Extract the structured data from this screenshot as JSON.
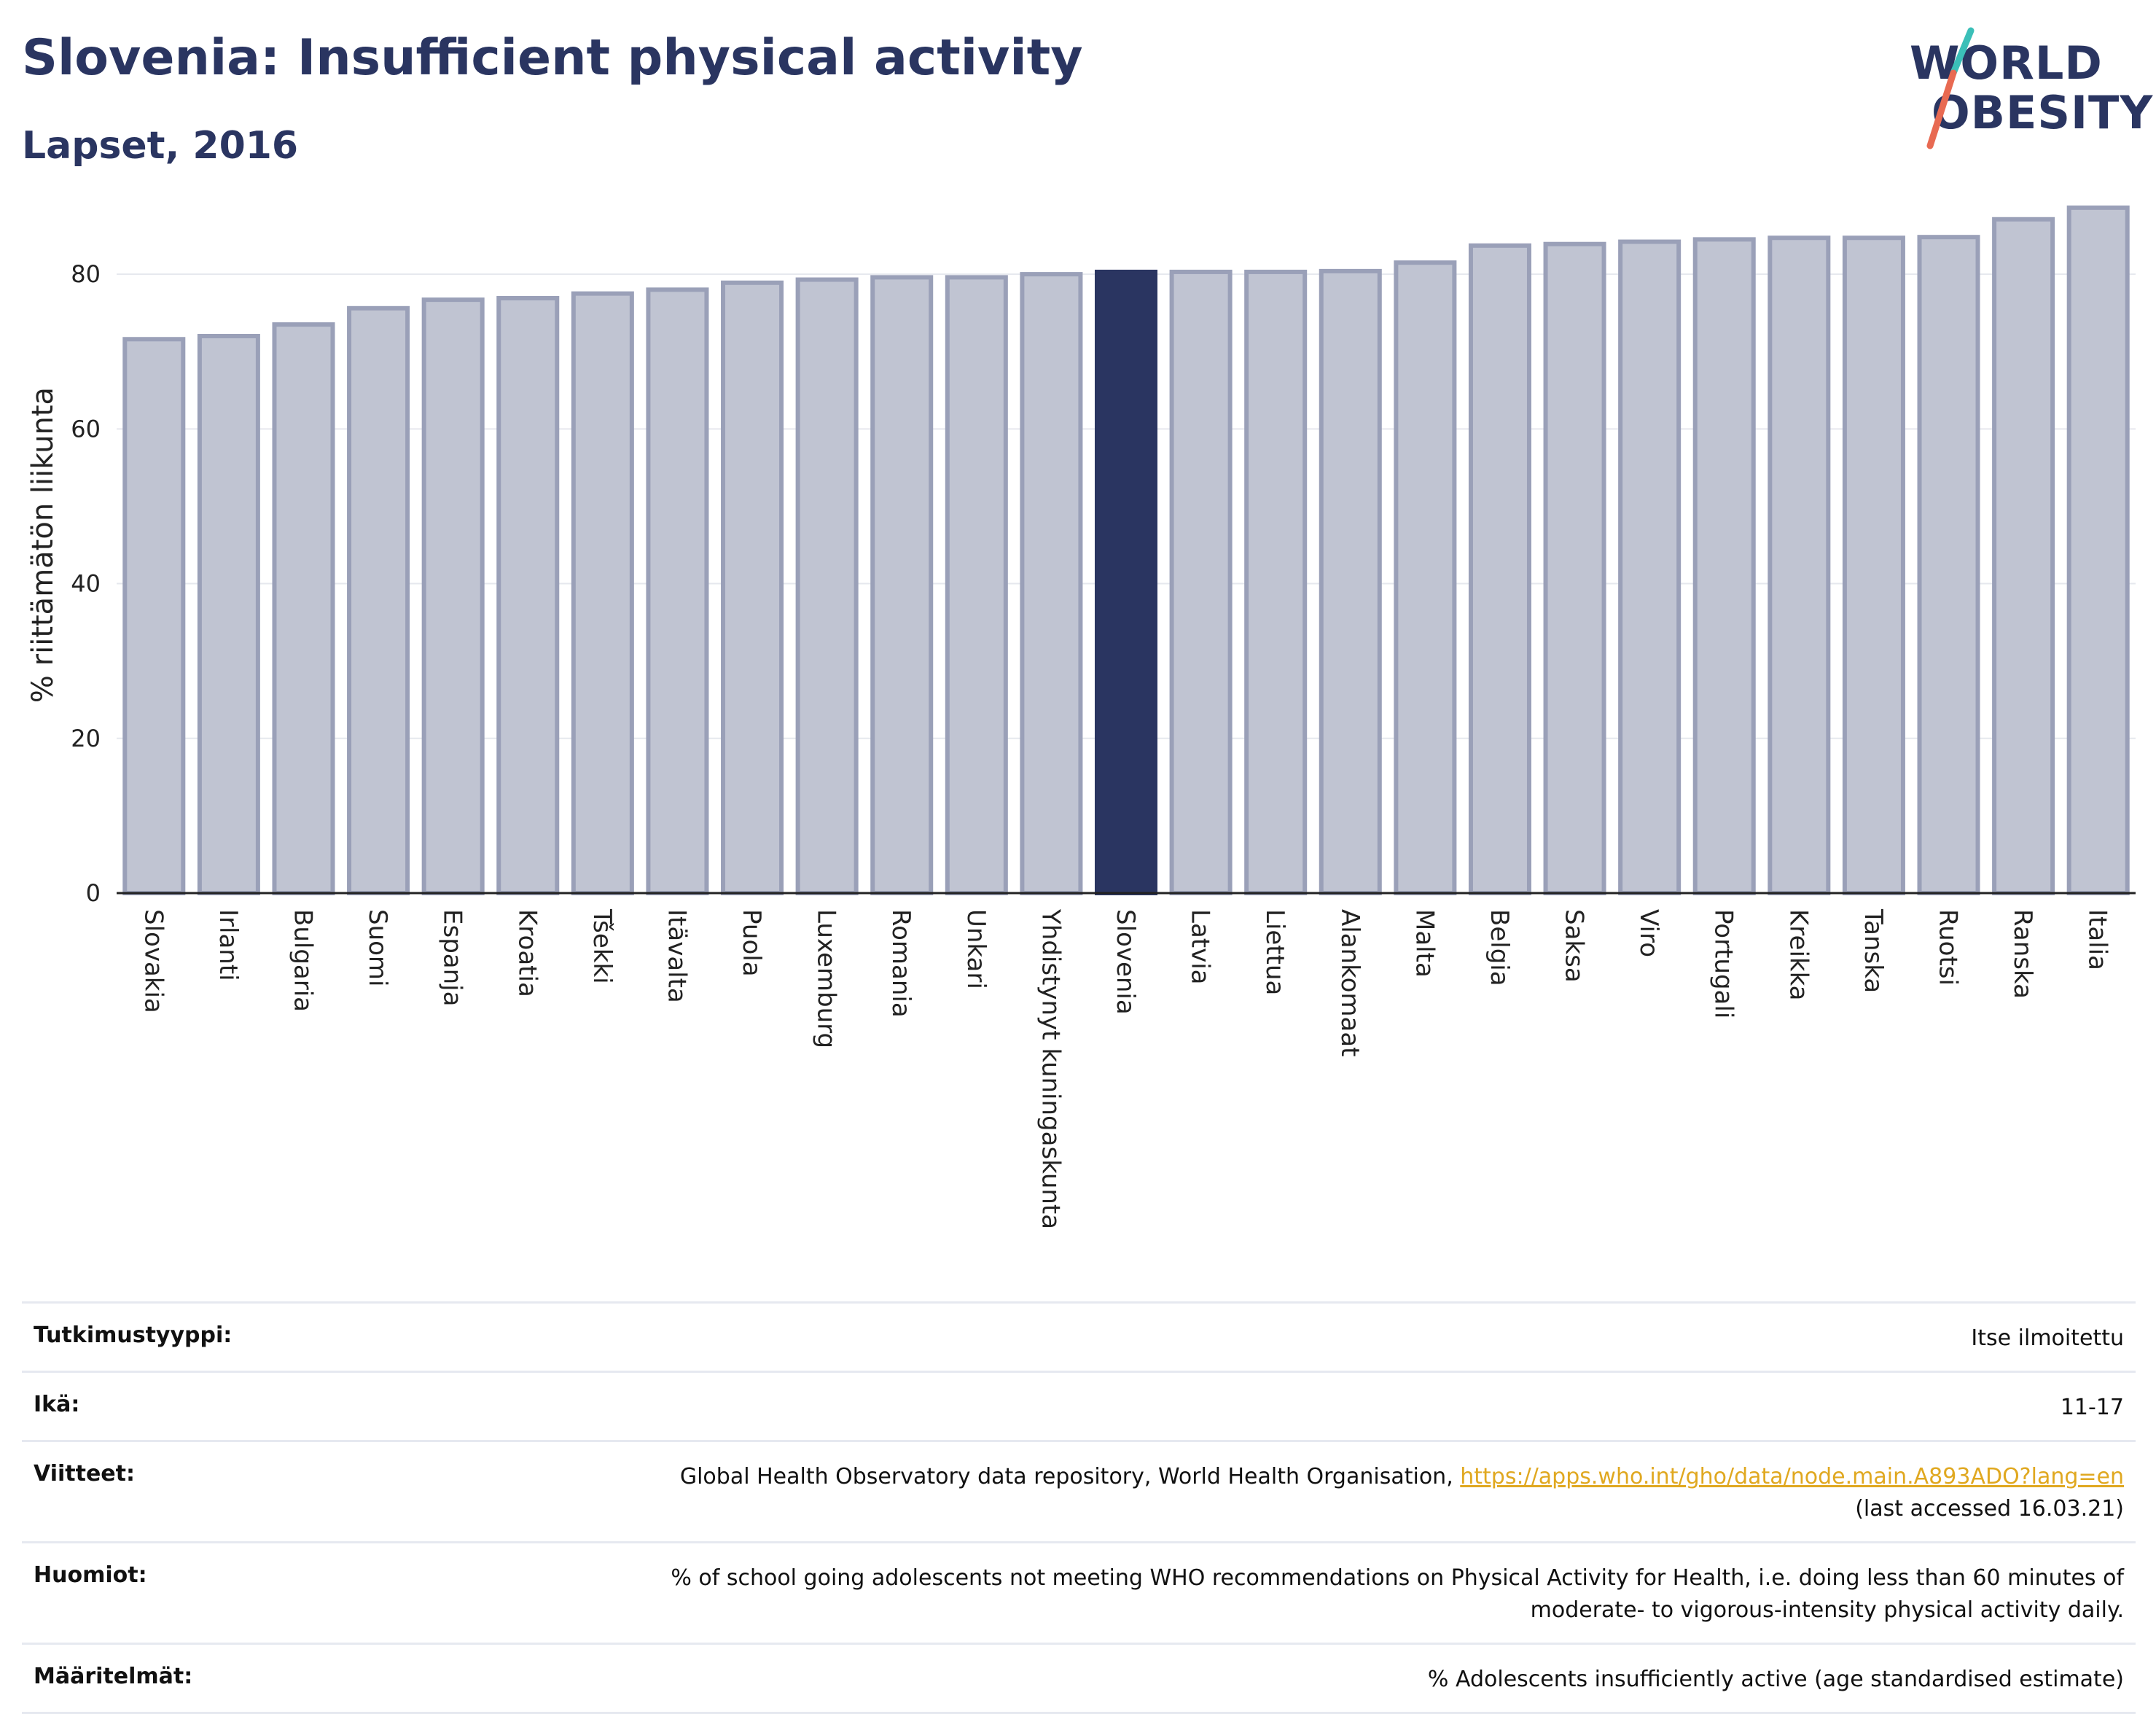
{
  "header": {
    "title": "Slovenia: Insufficient physical activity",
    "subtitle": "Lapset, 2016"
  },
  "logo": {
    "line1": "WORLD",
    "line2": "OBESITY"
  },
  "colors": {
    "bar_default": "#c0c4d2",
    "bar_border": "#9aa0b8",
    "bar_highlight": "#2a3561",
    "gridline": "#e6e8ee",
    "link": "#e0a820"
  },
  "chart_data": {
    "type": "bar",
    "ylabel": "% riittämätön liikunta",
    "ylim": [
      0,
      90
    ],
    "yticks": [
      0,
      20,
      40,
      60,
      80
    ],
    "grid": true,
    "highlight": "Slovenia",
    "categories": [
      "Slovakia",
      "Irlanti",
      "Bulgaria",
      "Suomi",
      "Espanja",
      "Kroatia",
      "Tšekki",
      "Itävalta",
      "Puola",
      "Luxemburg",
      "Romania",
      "Unkari",
      "Yhdistynyt kuningaskunta",
      "Slovenia",
      "Latvia",
      "Liettua",
      "Alankomaat",
      "Malta",
      "Belgia",
      "Saksa",
      "Viro",
      "Portugali",
      "Kreikka",
      "Tanska",
      "Ruotsi",
      "Ranska",
      "Italia"
    ],
    "values": [
      71.6,
      72.0,
      73.5,
      75.6,
      76.7,
      76.9,
      77.5,
      78.0,
      78.9,
      79.3,
      79.6,
      79.6,
      80.0,
      80.3,
      80.3,
      80.3,
      80.4,
      81.5,
      83.7,
      83.9,
      84.2,
      84.5,
      84.7,
      84.7,
      84.8,
      87.1,
      88.6
    ]
  },
  "info": [
    {
      "key": "Tutkimustyyppi:",
      "value": "Itse ilmoitettu"
    },
    {
      "key": "Ikä:",
      "value": "11-17"
    },
    {
      "key": "Viitteet:",
      "value": "Global Health Observatory data repository, World Health Organisation, ",
      "link": "https://apps.who.int/gho/data/node.main.A893ADO?lang=en",
      "value_after": "(last accessed 16.03.21)"
    },
    {
      "key": "Huomiot:",
      "value": "% of school going adolescents not meeting WHO recommendations on Physical Activity for Health, i.e. doing less than 60 minutes of",
      "value2": "moderate- to vigorous-intensity physical activity daily."
    },
    {
      "key": "Määritelmät:",
      "value": "% Adolescents insufficiently active (age standardised estimate)"
    }
  ]
}
